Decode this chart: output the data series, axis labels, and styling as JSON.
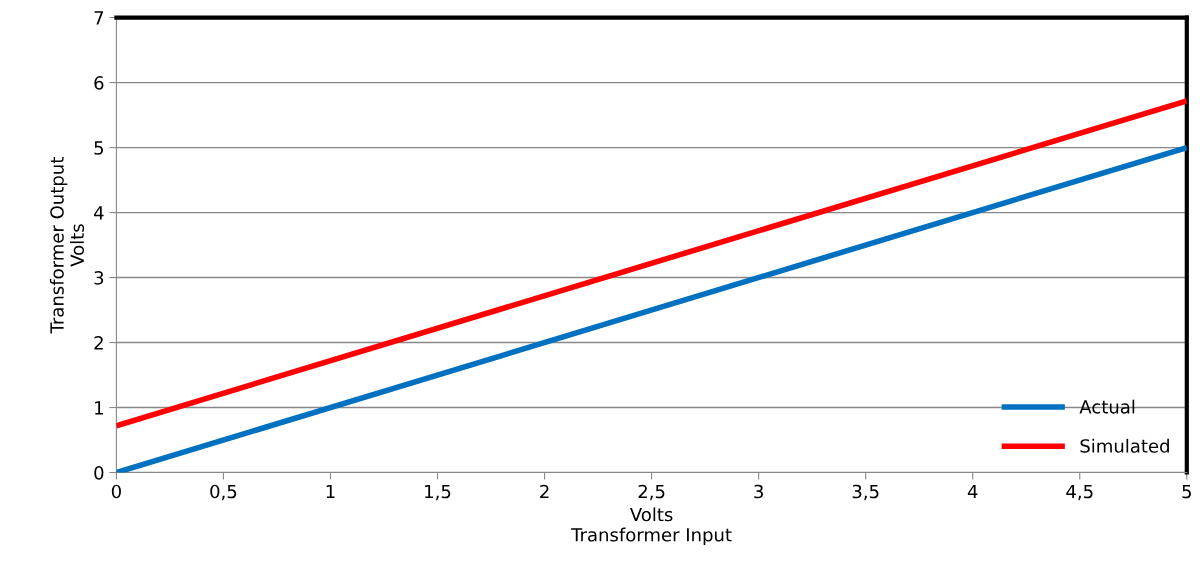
{
  "chart_data": {
    "type": "line",
    "xlabel": "Volts\nTransformer Input",
    "ylabel": "Transformer Output\nVolts",
    "x": [
      0,
      5
    ],
    "series": [
      {
        "name": "Actual",
        "color": "#0070c0",
        "values": [
          0,
          5
        ]
      },
      {
        "name": "Simulated",
        "color": "#ff0000",
        "values": [
          0.72,
          5.72
        ]
      }
    ],
    "xlim": [
      0,
      5
    ],
    "ylim": [
      0,
      7
    ],
    "xticks": [
      0,
      {
        "value": 0.5,
        "label": "0,5"
      },
      1,
      {
        "value": 1.5,
        "label": "1,5"
      },
      2,
      {
        "value": 2.5,
        "label": "2,5"
      },
      3,
      {
        "value": 3.5,
        "label": "3,5"
      },
      4,
      {
        "value": 4.5,
        "label": "4,5"
      },
      5
    ],
    "yticks": [
      0,
      1,
      2,
      3,
      4,
      5,
      6,
      7
    ],
    "grid": "y",
    "legend": "bottom right",
    "marker": "none",
    "line_style": "solid"
  }
}
